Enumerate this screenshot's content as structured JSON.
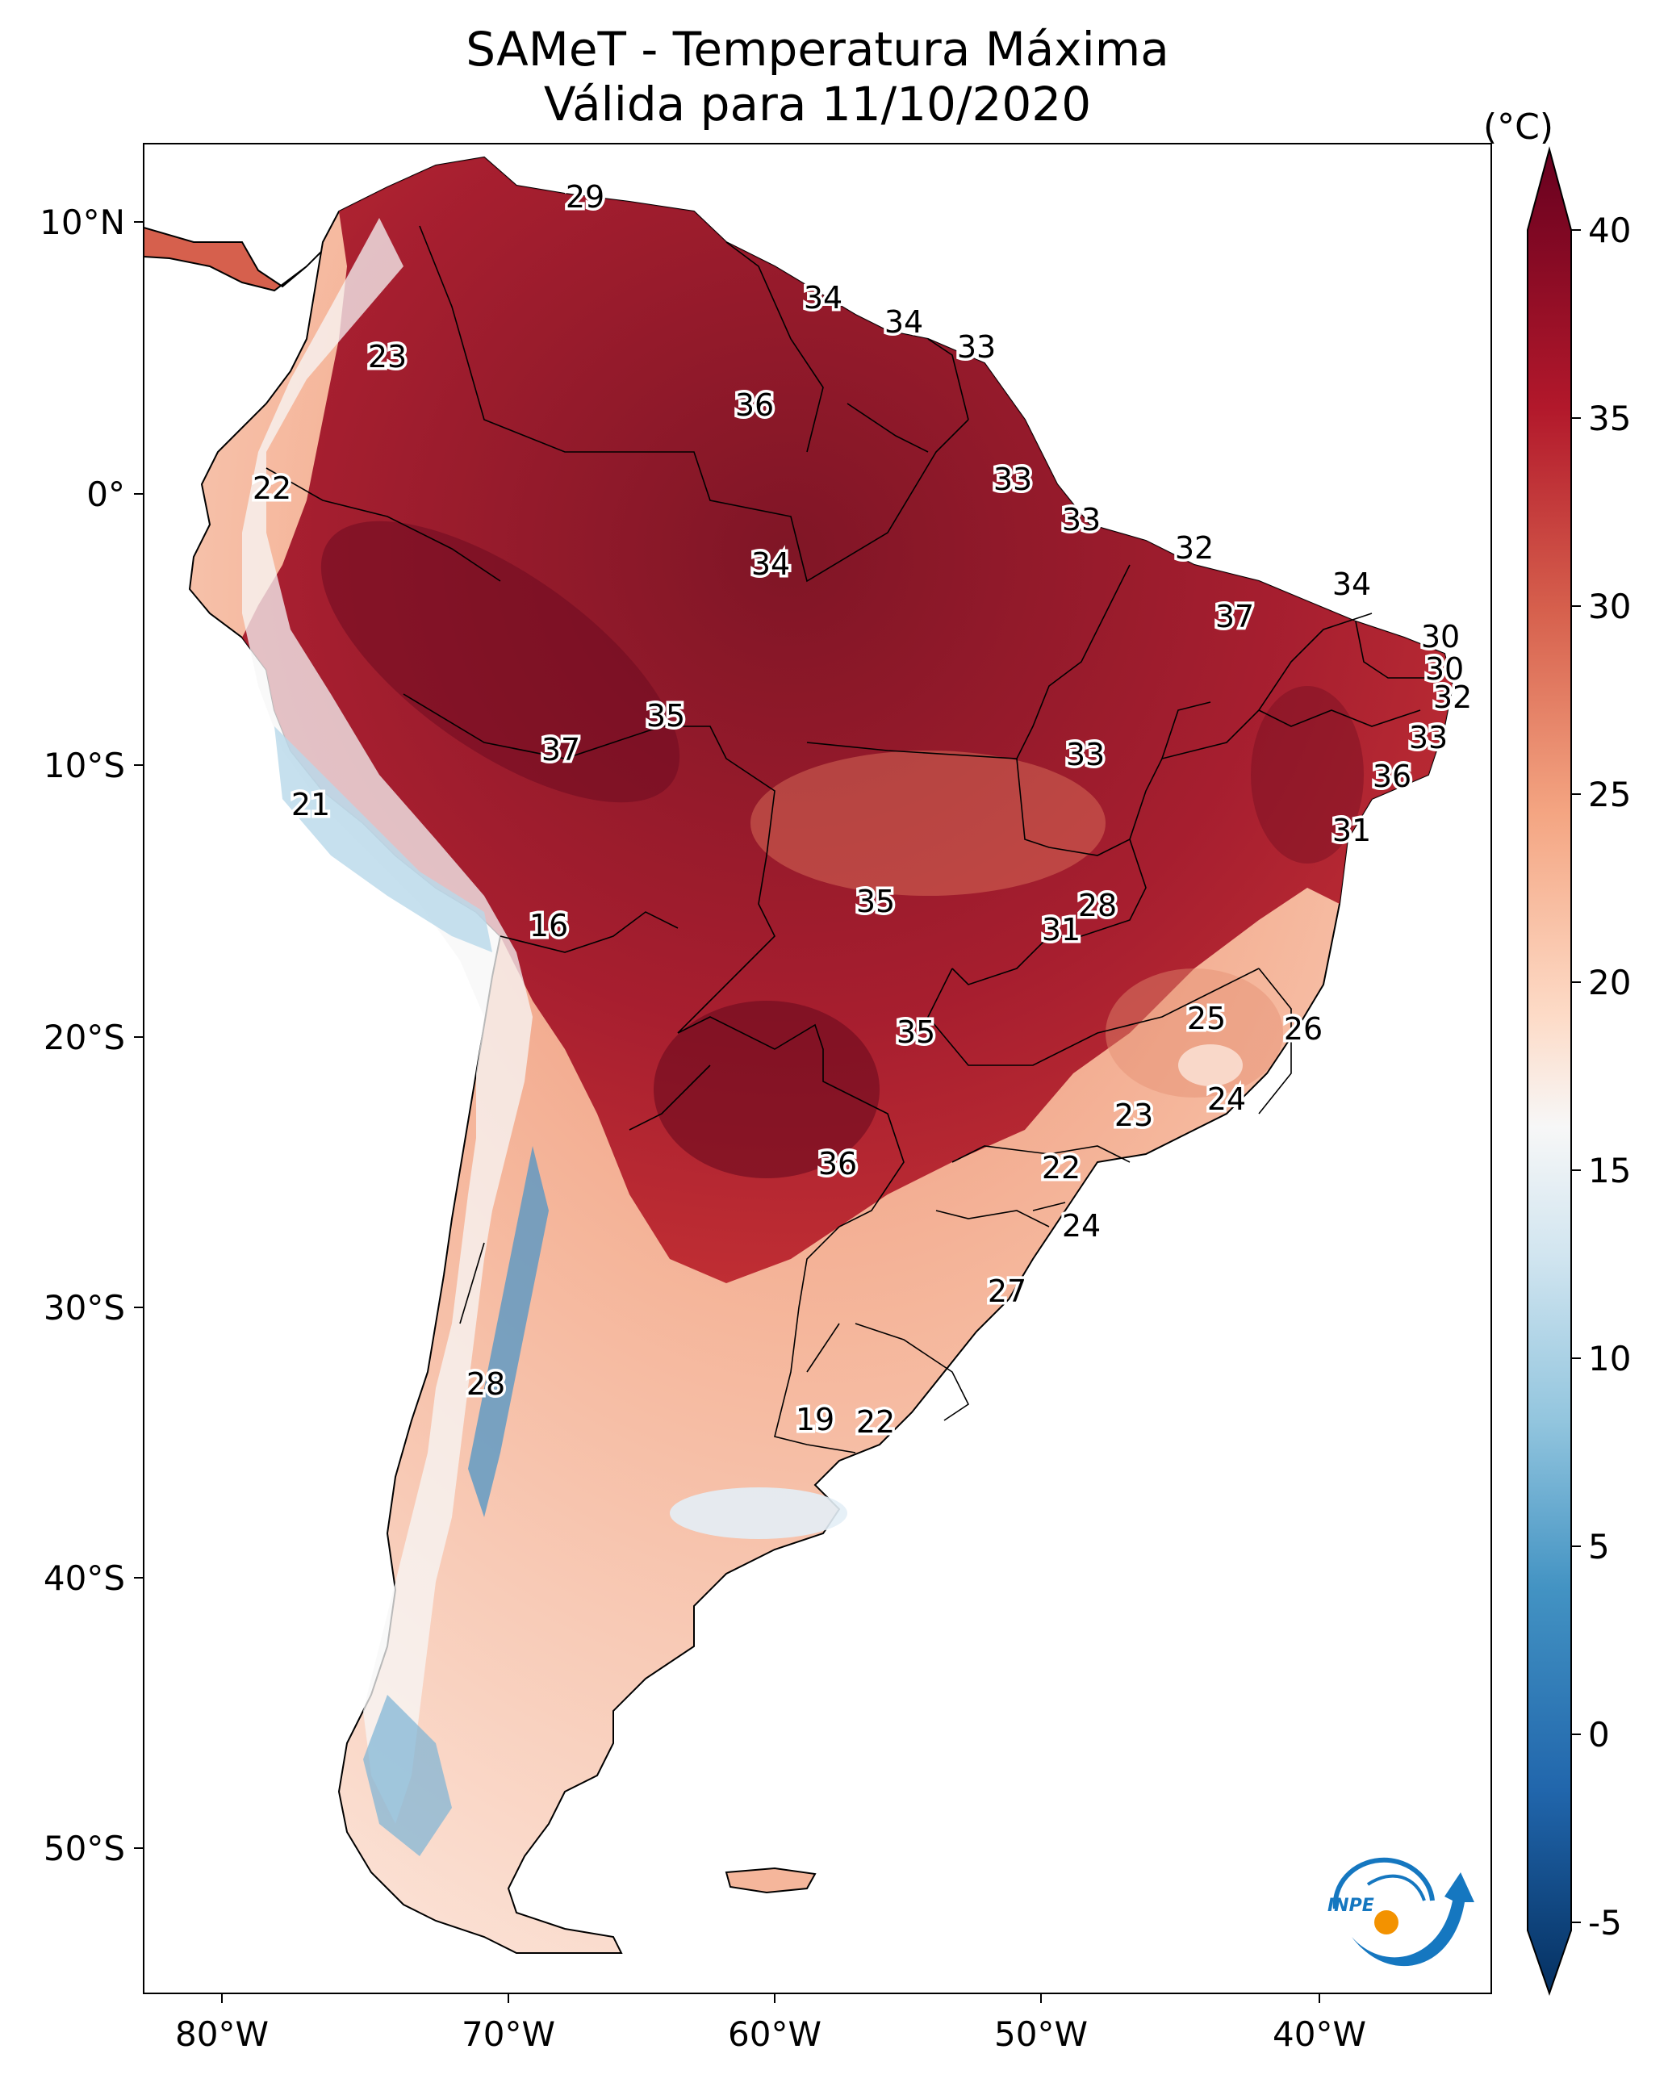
{
  "title_line1": "SAMeT - Temperatura Máxima",
  "title_line2": "Válida para 11/10/2020",
  "map": {
    "lon_ticks": [
      "80°W",
      "70°W",
      "60°W",
      "50°W",
      "40°W"
    ],
    "lat_ticks": [
      "10°N",
      "0°",
      "10°S",
      "20°S",
      "30°S",
      "40°S",
      "50°S"
    ],
    "value_labels": [
      "29",
      "34",
      "34",
      "33",
      "23",
      "36",
      "22",
      "33",
      "33",
      "34",
      "32",
      "34",
      "37",
      "30",
      "30",
      "32",
      "35",
      "33",
      "37",
      "33",
      "36",
      "21",
      "31",
      "16",
      "35",
      "28",
      "31",
      "35",
      "25",
      "26",
      "24",
      "23",
      "36",
      "22",
      "24",
      "27",
      "28",
      "19",
      "22"
    ]
  },
  "colorbar": {
    "unit": "(°C)",
    "tick_labels": [
      "40",
      "35",
      "30",
      "25",
      "20",
      "15",
      "10",
      "5",
      "0",
      "-5"
    ],
    "colors": {
      "c40": "#67001f",
      "c35": "#b2182b",
      "c30": "#d6604d",
      "c25": "#f4a582",
      "c20": "#fddbc7",
      "c17": "#f7f7f7",
      "c15": "#d1e5f0",
      "c10": "#92c5de",
      "c5": "#4393c3",
      "c0": "#2166ac",
      "cm5": "#053061"
    }
  },
  "logo": {
    "text": "INPE",
    "colors": {
      "blue": "#1577c0",
      "orange": "#f39200"
    }
  }
}
